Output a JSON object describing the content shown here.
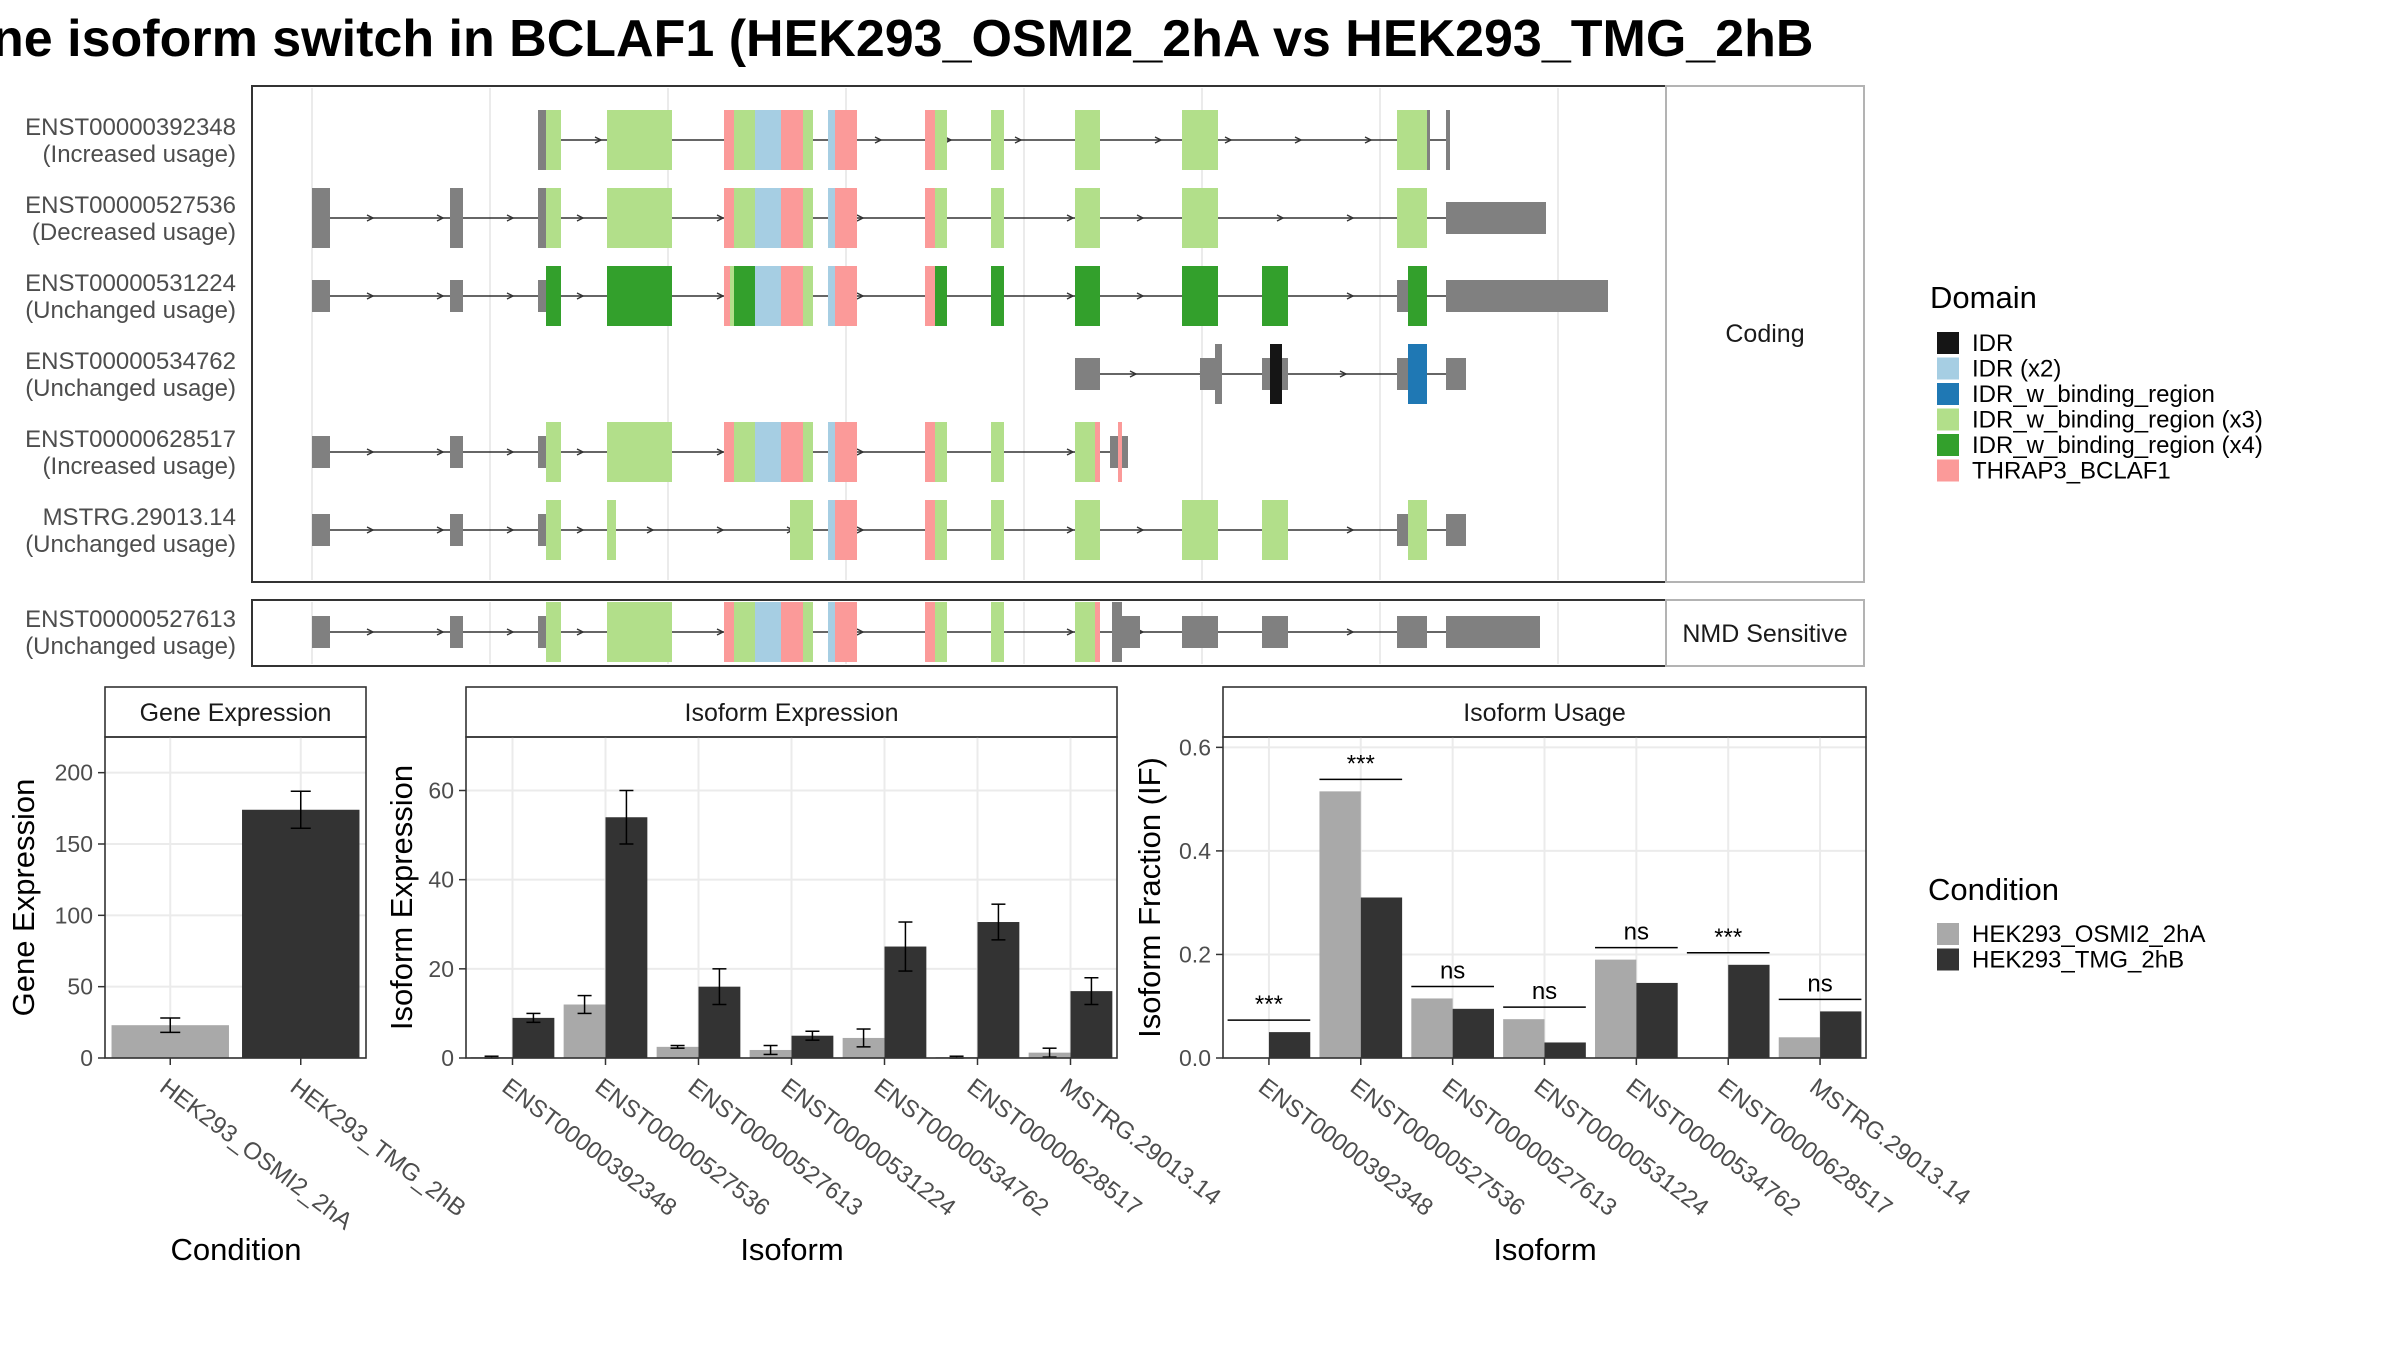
{
  "title": "ne isoform switch in BCLAF1 (HEK293_OSMI2_2hA vs HEK293_TMG_2hB",
  "colors": {
    "cond_a": "#a9a9a9",
    "cond_b": "#333333",
    "noncoding": "#808080",
    "domains": {
      "IDR": "#151515",
      "IDR (x2)": "#a6cee3",
      "IDR_w_binding_region": "#1f78b4",
      "IDR_w_binding_region (x3)": "#b2df8a",
      "IDR_w_binding_region (x4)": "#33a02c",
      "THRAP3_BCLAF1": "#fb9a99"
    }
  },
  "structure": {
    "coding_label": "Coding",
    "nmd_label": "NMD Sensitive",
    "transcripts": [
      {
        "id": "ENST00000392348",
        "note": "(Increased usage)",
        "group": "coding",
        "exons": [
          [
            1,
            6
          ],
          [
            2,
            14
          ],
          [
            13,
            16
          ],
          [
            13,
            14
          ],
          [
            35,
            38
          ],
          [
            45,
            47
          ],
          [
            57,
            59
          ],
          [
            72,
            75
          ],
          [
            86,
            89
          ],
          [
            106,
            108
          ],
          [
            115,
            116
          ]
        ],
        "domains": [
          [
            "IDR_w_binding_region (x3)",
            [
              [
                2,
                14
              ],
              [
                10,
                16
              ],
              [
                19,
                23
              ],
              [
                29,
                32
              ],
              [
                34,
                38
              ],
              [
                45,
                47
              ],
              [
                57,
                59
              ],
              [
                72,
                75
              ],
              [
                87,
                89
              ],
              [
                108,
                109
              ]
            ]
          ],
          [
            "IDR (x2)",
            [
              [
                3,
                7
              ],
              [
                12,
                13
              ],
              [
                19,
                22
              ]
            ]
          ],
          [
            "THRAP3_BCLAF1",
            [
              [
                1,
                3
              ],
              [
                7,
                10
              ],
              [
                13,
                16
              ],
              [
                22,
                24
              ],
              [
                29,
                32
              ]
            ]
          ]
        ]
      },
      {
        "id": "ENST00000527536",
        "note": "(Decreased usage)",
        "group": "coding",
        "exons": [
          [
            0,
            2
          ],
          [
            18,
            20
          ],
          [
            35,
            37
          ],
          [
            45,
            47
          ],
          [
            72,
            75
          ],
          [
            86,
            89
          ],
          [
            106,
            108
          ],
          [
            115,
            116
          ]
        ],
        "domains": []
      },
      {
        "id": "ENST00000531224",
        "note": "(Unchanged usage)",
        "group": "coding",
        "exons": [],
        "domains": []
      },
      {
        "id": "ENST00000534762",
        "note": "(Unchanged usage)",
        "group": "coding",
        "exons": [],
        "domains": []
      },
      {
        "id": "ENST00000628517",
        "note": "(Increased usage)",
        "group": "coding",
        "exons": [],
        "domains": []
      },
      {
        "id": "MSTRG.29013.14",
        "note": "(Unchanged usage)",
        "group": "coding",
        "exons": [],
        "domains": []
      },
      {
        "id": "ENST00000527613",
        "note": "(Unchanged usage)",
        "group": "nmd",
        "exons": [],
        "domains": []
      }
    ]
  },
  "legend_domain": {
    "title": "Domain",
    "items": [
      "IDR",
      "IDR (x2)",
      "IDR_w_binding_region",
      "IDR_w_binding_region (x3)",
      "IDR_w_binding_region (x4)",
      "THRAP3_BCLAF1"
    ]
  },
  "legend_condition": {
    "title": "Condition",
    "items": [
      "HEK293_OSMI2_2hA",
      "HEK293_TMG_2hB"
    ]
  },
  "chart_data": [
    {
      "type": "bar",
      "title": "Gene Expression",
      "xlabel": "Condition",
      "ylabel": "Gene Expression",
      "categories": [
        "HEK293_OSMI2_2hA",
        "HEK293_TMG_2hB"
      ],
      "values": [
        23,
        174
      ],
      "errors": [
        5,
        13
      ],
      "ylim": [
        0,
        225
      ],
      "yticks": [
        0,
        50,
        100,
        150,
        200
      ]
    },
    {
      "type": "bar",
      "title": "Isoform Expression",
      "xlabel": "Isoform",
      "ylabel": "Isoform Expression",
      "categories": [
        "ENST00000392348",
        "ENST00000527536",
        "ENST00000527613",
        "ENST00000531224",
        "ENST00000534762",
        "ENST00000628517",
        "MSTRG.29013.14"
      ],
      "series": [
        {
          "name": "HEK293_OSMI2_2hA",
          "values": [
            0.2,
            12,
            2.5,
            1.8,
            4.5,
            0.2,
            1.2
          ],
          "errors": [
            0.2,
            2,
            0.3,
            1,
            2,
            0.2,
            1
          ]
        },
        {
          "name": "HEK293_TMG_2hB",
          "values": [
            9,
            54,
            16,
            5,
            25,
            30.5,
            15
          ],
          "errors": [
            1,
            6,
            4,
            1,
            5.5,
            4,
            3
          ]
        }
      ],
      "ylim": [
        0,
        72
      ],
      "yticks": [
        0,
        20,
        40,
        60
      ]
    },
    {
      "type": "bar",
      "title": "Isoform Usage",
      "xlabel": "Isoform",
      "ylabel": "Isoform Fraction (IF)",
      "categories": [
        "ENST00000392348",
        "ENST00000527536",
        "ENST00000527613",
        "ENST00000531224",
        "ENST00000534762",
        "ENST00000628517",
        "MSTRG.29013.14"
      ],
      "series": [
        {
          "name": "HEK293_OSMI2_2hA",
          "values": [
            0.0,
            0.515,
            0.115,
            0.075,
            0.19,
            0.0,
            0.04
          ]
        },
        {
          "name": "HEK293_TMG_2hB",
          "values": [
            0.05,
            0.31,
            0.095,
            0.03,
            0.145,
            0.18,
            0.09
          ]
        }
      ],
      "significance": [
        "***",
        "***",
        "ns",
        "ns",
        "ns",
        "***",
        "ns"
      ],
      "ylim": [
        0,
        0.62
      ],
      "yticks": [
        0.0,
        0.2,
        0.4,
        0.6
      ],
      "ytick_labels": [
        "0.0",
        "0.2",
        "0.4",
        "0.6"
      ]
    }
  ]
}
